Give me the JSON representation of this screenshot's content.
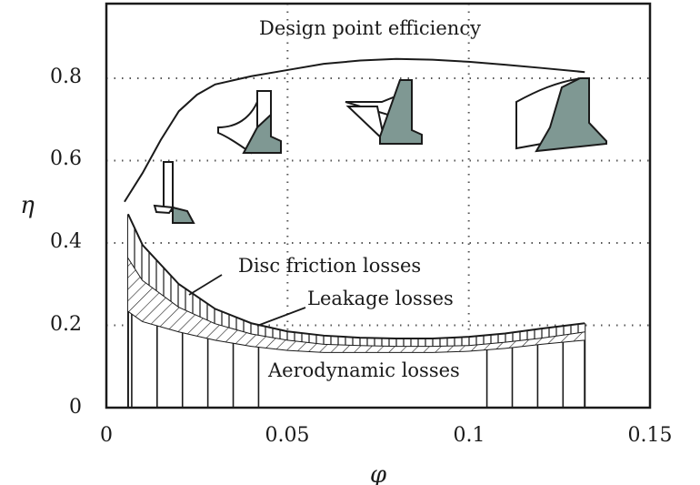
{
  "chart_data": {
    "type": "area",
    "title": "",
    "xlabel": "φ",
    "ylabel": "η",
    "xlim": [
      0,
      0.15
    ],
    "ylim": [
      0,
      0.9
    ],
    "x_ticks": [
      "0",
      "0.05",
      "0.1",
      "0.15"
    ],
    "y_ticks": [
      "0",
      "0.2",
      "0.4",
      "0.6",
      "0.8"
    ],
    "grid": "dotted",
    "series": [
      {
        "name": "Design point efficiency",
        "x": [
          0.005,
          0.01,
          0.015,
          0.02,
          0.025,
          0.03,
          0.04,
          0.05,
          0.06,
          0.07,
          0.08,
          0.09,
          0.1,
          0.11,
          0.12,
          0.132
        ],
        "values": [
          0.5,
          0.57,
          0.65,
          0.72,
          0.76,
          0.785,
          0.805,
          0.82,
          0.835,
          0.843,
          0.847,
          0.845,
          0.84,
          0.833,
          0.825,
          0.815
        ]
      }
    ],
    "loss_bands": [
      {
        "name": "Aerodynamic losses",
        "x": [
          0.006,
          0.01,
          0.02,
          0.03,
          0.04,
          0.05,
          0.06,
          0.07,
          0.08,
          0.09,
          0.1,
          0.11,
          0.12,
          0.132
        ],
        "values": [
          0.235,
          0.21,
          0.185,
          0.165,
          0.15,
          0.14,
          0.135,
          0.135,
          0.135,
          0.135,
          0.138,
          0.145,
          0.155,
          0.165
        ]
      },
      {
        "name": "Leakage losses",
        "x": [
          0.006,
          0.01,
          0.02,
          0.03,
          0.04,
          0.05,
          0.06,
          0.07,
          0.08,
          0.09,
          0.1,
          0.11,
          0.12,
          0.132
        ],
        "values": [
          0.365,
          0.31,
          0.245,
          0.205,
          0.18,
          0.165,
          0.155,
          0.152,
          0.15,
          0.15,
          0.152,
          0.16,
          0.17,
          0.185
        ]
      },
      {
        "name": "Disc friction losses",
        "x": [
          0.006,
          0.01,
          0.02,
          0.03,
          0.04,
          0.05,
          0.06,
          0.07,
          0.08,
          0.09,
          0.1,
          0.11,
          0.12,
          0.132
        ],
        "values": [
          0.47,
          0.395,
          0.3,
          0.24,
          0.205,
          0.185,
          0.175,
          0.17,
          0.168,
          0.168,
          0.172,
          0.18,
          0.192,
          0.205
        ]
      }
    ],
    "annotations": [
      "Design point efficiency",
      "Disc friction losses",
      "Leakage losses",
      "Aerodynamic losses"
    ]
  }
}
